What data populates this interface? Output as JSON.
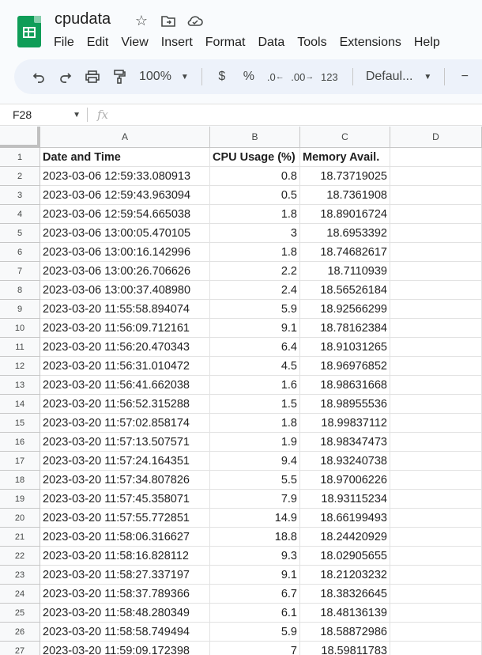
{
  "doc": {
    "title": "cpudata",
    "icons": [
      "star-icon",
      "move-to-folder-icon",
      "cloud-status-icon"
    ]
  },
  "menu": [
    "File",
    "Edit",
    "View",
    "Insert",
    "Format",
    "Data",
    "Tools",
    "Extensions",
    "Help"
  ],
  "toolbar": {
    "zoom": "100%",
    "currency": "$",
    "percent": "%",
    "decrease_decimal": ".0",
    "increase_decimal": ".00",
    "number_format": "123",
    "font": "Defaul...",
    "minus": "−"
  },
  "formula_bar": {
    "cell_ref": "F28",
    "fx": "fx"
  },
  "columns": [
    "A",
    "B",
    "C",
    "D"
  ],
  "header_row": {
    "row": "1",
    "cells": [
      "Date and Time",
      "CPU Usage (%)",
      "Memory Avail.",
      ""
    ]
  },
  "rows": [
    {
      "n": "2",
      "a": "2023-03-06 12:59:33.080913",
      "b": "0.8",
      "c": "18.73719025"
    },
    {
      "n": "3",
      "a": "2023-03-06 12:59:43.963094",
      "b": "0.5",
      "c": "18.7361908"
    },
    {
      "n": "4",
      "a": "2023-03-06 12:59:54.665038",
      "b": "1.8",
      "c": "18.89016724"
    },
    {
      "n": "5",
      "a": "2023-03-06 13:00:05.470105",
      "b": "3",
      "c": "18.6953392"
    },
    {
      "n": "6",
      "a": "2023-03-06 13:00:16.142996",
      "b": "1.8",
      "c": "18.74682617"
    },
    {
      "n": "7",
      "a": "2023-03-06 13:00:26.706626",
      "b": "2.2",
      "c": "18.7110939"
    },
    {
      "n": "8",
      "a": "2023-03-06 13:00:37.408980",
      "b": "2.4",
      "c": "18.56526184"
    },
    {
      "n": "9",
      "a": "2023-03-20 11:55:58.894074",
      "b": "5.9",
      "c": "18.92566299"
    },
    {
      "n": "10",
      "a": "2023-03-20 11:56:09.712161",
      "b": "9.1",
      "c": "18.78162384"
    },
    {
      "n": "11",
      "a": "2023-03-20 11:56:20.470343",
      "b": "6.4",
      "c": "18.91031265"
    },
    {
      "n": "12",
      "a": "2023-03-20 11:56:31.010472",
      "b": "4.5",
      "c": "18.96976852"
    },
    {
      "n": "13",
      "a": "2023-03-20 11:56:41.662038",
      "b": "1.6",
      "c": "18.98631668"
    },
    {
      "n": "14",
      "a": "2023-03-20 11:56:52.315288",
      "b": "1.5",
      "c": "18.98955536"
    },
    {
      "n": "15",
      "a": "2023-03-20 11:57:02.858174",
      "b": "1.8",
      "c": "18.99837112"
    },
    {
      "n": "16",
      "a": "2023-03-20 11:57:13.507571",
      "b": "1.9",
      "c": "18.98347473"
    },
    {
      "n": "17",
      "a": "2023-03-20 11:57:24.164351",
      "b": "9.4",
      "c": "18.93240738"
    },
    {
      "n": "18",
      "a": "2023-03-20 11:57:34.807826",
      "b": "5.5",
      "c": "18.97006226"
    },
    {
      "n": "19",
      "a": "2023-03-20 11:57:45.358071",
      "b": "7.9",
      "c": "18.93115234"
    },
    {
      "n": "20",
      "a": "2023-03-20 11:57:55.772851",
      "b": "14.9",
      "c": "18.66199493"
    },
    {
      "n": "21",
      "a": "2023-03-20 11:58:06.316627",
      "b": "18.8",
      "c": "18.24420929"
    },
    {
      "n": "22",
      "a": "2023-03-20 11:58:16.828112",
      "b": "9.3",
      "c": "18.02905655"
    },
    {
      "n": "23",
      "a": "2023-03-20 11:58:27.337197",
      "b": "9.1",
      "c": "18.21203232"
    },
    {
      "n": "24",
      "a": "2023-03-20 11:58:37.789366",
      "b": "6.7",
      "c": "18.38326645"
    },
    {
      "n": "25",
      "a": "2023-03-20 11:58:48.280349",
      "b": "6.1",
      "c": "18.48136139"
    },
    {
      "n": "26",
      "a": "2023-03-20 11:58:58.749494",
      "b": "5.9",
      "c": "18.58872986"
    },
    {
      "n": "27",
      "a": "2023-03-20 11:59:09.172398",
      "b": "7",
      "c": "18.59811783"
    }
  ]
}
